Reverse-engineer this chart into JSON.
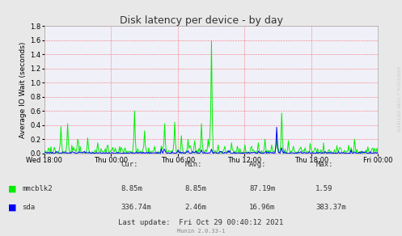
{
  "title": "Disk latency per device - by day",
  "ylabel": "Average IO Wait (seconds)",
  "watermark": "RRDTOOL / TOBI OETIKER",
  "munin_version": "Munin 2.0.33-1",
  "last_update": "Last update:  Fri Oct 29 00:40:12 2021",
  "background_color": "#e8e8e8",
  "plot_bg_color": "#ffffff",
  "ylim": [
    0.0,
    1.8
  ],
  "yticks": [
    0.0,
    0.2,
    0.4,
    0.6,
    0.8,
    1.0,
    1.2,
    1.4,
    1.6,
    1.8
  ],
  "xtick_labels": [
    "Wed 18:00",
    "Thu 00:00",
    "Thu 06:00",
    "Thu 12:00",
    "Thu 18:00",
    "Fri 00:00"
  ],
  "legend": [
    {
      "label": "mmcblk2",
      "color": "#00ee00"
    },
    {
      "label": "sda",
      "color": "#0000ff"
    }
  ],
  "stats": {
    "headers": [
      "Cur:",
      "Min:",
      "Avg:",
      "Max:"
    ],
    "mmcblk2": [
      "8.85m",
      "8.85m",
      "87.19m",
      "1.59"
    ],
    "sda": [
      "336.74m",
      "2.46m",
      "16.96m",
      "383.37m"
    ]
  }
}
